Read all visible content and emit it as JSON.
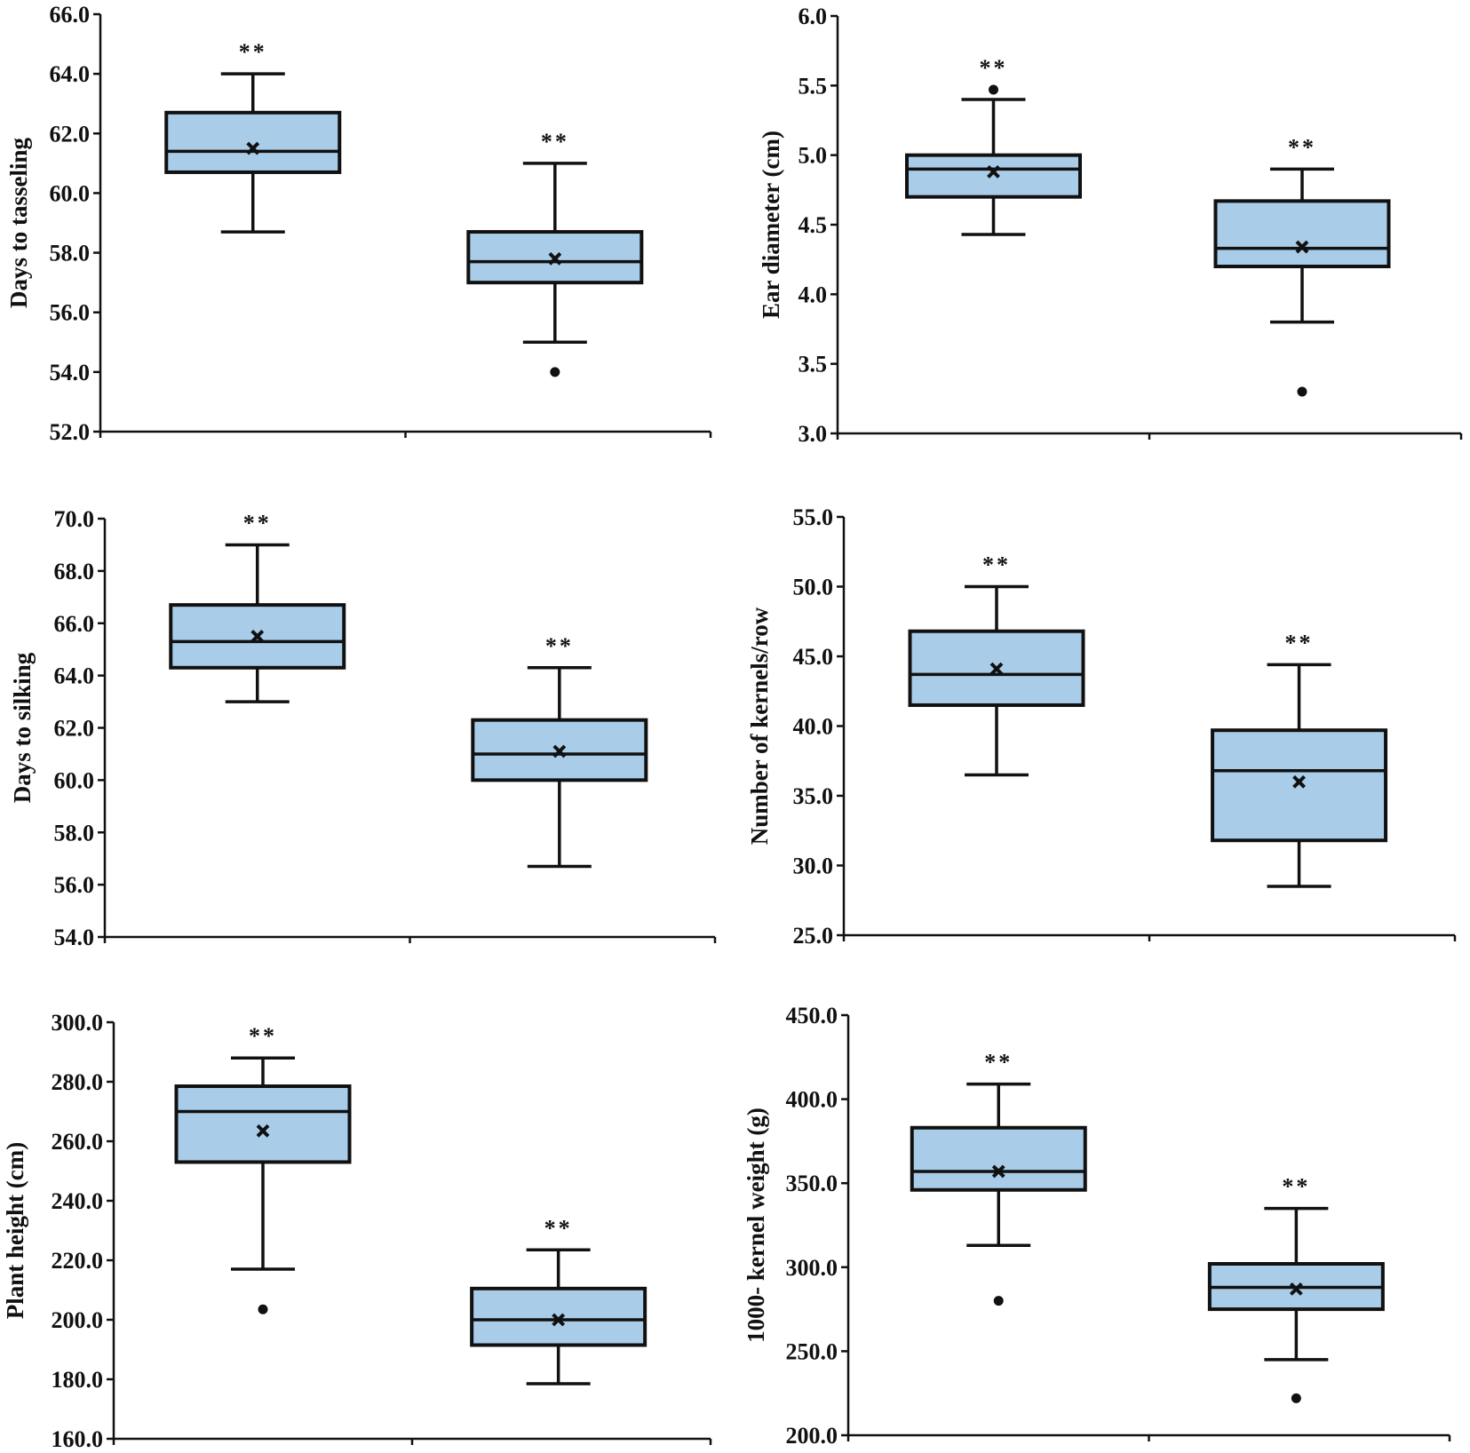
{
  "colors": {
    "box_fill": "#a9cde9",
    "stroke": "#111111",
    "background": "#ffffff"
  },
  "chart_data": [
    {
      "type": "box",
      "ylabel": "Days to tasseling",
      "ylim": [
        52.0,
        66.0
      ],
      "yticks": [
        52.0,
        54.0,
        56.0,
        58.0,
        60.0,
        62.0,
        64.0,
        66.0
      ],
      "decimals": 1,
      "boxes": [
        {
          "whisker_low": 58.7,
          "q1": 60.7,
          "median": 61.4,
          "q3": 62.7,
          "whisker_high": 64.0,
          "mean": 61.5,
          "outliers": [],
          "significance": "**"
        },
        {
          "whisker_low": 55.0,
          "q1": 57.0,
          "median": 57.7,
          "q3": 58.7,
          "whisker_high": 61.0,
          "mean": 57.8,
          "outliers": [
            54.0
          ],
          "significance": "**"
        }
      ]
    },
    {
      "type": "box",
      "ylabel": "Ear diameter (cm)",
      "ylim": [
        3.0,
        6.0
      ],
      "yticks": [
        3.0,
        3.5,
        4.0,
        4.5,
        5.0,
        5.5,
        6.0
      ],
      "decimals": 1,
      "boxes": [
        {
          "whisker_low": 4.43,
          "q1": 4.7,
          "median": 4.9,
          "q3": 5.0,
          "whisker_high": 5.4,
          "mean": 4.88,
          "outliers": [
            5.47
          ],
          "significance": "**"
        },
        {
          "whisker_low": 3.8,
          "q1": 4.2,
          "median": 4.33,
          "q3": 4.67,
          "whisker_high": 4.9,
          "mean": 4.34,
          "outliers": [
            3.3
          ],
          "significance": "**"
        }
      ]
    },
    {
      "type": "box",
      "ylabel": "Days to  silking",
      "ylim": [
        54.0,
        70.0
      ],
      "yticks": [
        54.0,
        56.0,
        58.0,
        60.0,
        62.0,
        64.0,
        66.0,
        68.0,
        70.0
      ],
      "decimals": 1,
      "boxes": [
        {
          "whisker_low": 63.0,
          "q1": 64.3,
          "median": 65.3,
          "q3": 66.7,
          "whisker_high": 69.0,
          "mean": 65.5,
          "outliers": [],
          "significance": "**"
        },
        {
          "whisker_low": 56.7,
          "q1": 60.0,
          "median": 61.0,
          "q3": 62.3,
          "whisker_high": 64.3,
          "mean": 61.1,
          "outliers": [],
          "significance": "**"
        }
      ]
    },
    {
      "type": "box",
      "ylabel": "Number of kernels/row",
      "ylim": [
        25.0,
        55.0
      ],
      "yticks": [
        25.0,
        30.0,
        35.0,
        40.0,
        45.0,
        50.0,
        55.0
      ],
      "decimals": 1,
      "boxes": [
        {
          "whisker_low": 36.5,
          "q1": 41.5,
          "median": 43.7,
          "q3": 46.8,
          "whisker_high": 50.0,
          "mean": 44.1,
          "outliers": [],
          "significance": "**"
        },
        {
          "whisker_low": 28.5,
          "q1": 31.8,
          "median": 36.8,
          "q3": 39.7,
          "whisker_high": 44.4,
          "mean": 36.0,
          "outliers": [],
          "significance": "**"
        }
      ]
    },
    {
      "type": "box",
      "ylabel": "Plant height (cm)",
      "ylim": [
        160.0,
        300.0
      ],
      "yticks": [
        160.0,
        180.0,
        200.0,
        220.0,
        240.0,
        260.0,
        280.0,
        300.0
      ],
      "decimals": 1,
      "boxes": [
        {
          "whisker_low": 217.0,
          "q1": 253.0,
          "median": 270.0,
          "q3": 278.5,
          "whisker_high": 288.0,
          "mean": 263.5,
          "outliers": [
            203.5
          ],
          "significance": "**"
        },
        {
          "whisker_low": 178.5,
          "q1": 191.5,
          "median": 200.0,
          "q3": 210.5,
          "whisker_high": 223.5,
          "mean": 200.0,
          "outliers": [],
          "significance": "**"
        }
      ]
    },
    {
      "type": "box",
      "ylabel": "1000- kernel weight (g)",
      "ylim": [
        200.0,
        450.0
      ],
      "yticks": [
        200.0,
        250.0,
        300.0,
        350.0,
        400.0,
        450.0
      ],
      "decimals": 1,
      "boxes": [
        {
          "whisker_low": 313.0,
          "q1": 346.0,
          "median": 357.0,
          "q3": 383.0,
          "whisker_high": 409.0,
          "mean": 357.0,
          "outliers": [
            280.0
          ],
          "significance": "**"
        },
        {
          "whisker_low": 245.0,
          "q1": 275.0,
          "median": 288.0,
          "q3": 302.0,
          "whisker_high": 335.0,
          "mean": 287.0,
          "outliers": [
            222.0
          ],
          "significance": "**"
        }
      ]
    }
  ]
}
